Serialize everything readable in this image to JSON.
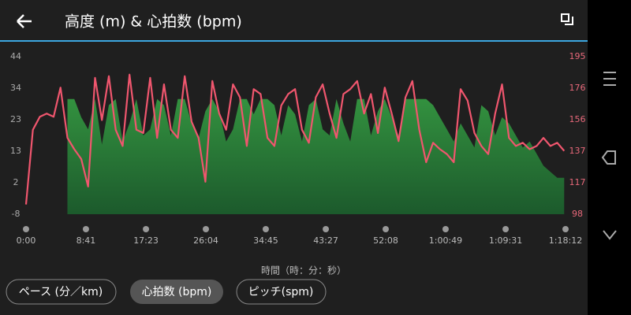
{
  "header": {
    "title": "高度 (m) & 心拍数 (bpm)"
  },
  "chart_data": {
    "type": "line",
    "x_label": "時間（時：分：秒）",
    "x": [
      0,
      60,
      120,
      180,
      240,
      300,
      360,
      420,
      480,
      540,
      600,
      660,
      720,
      780,
      840,
      900,
      960,
      1020,
      1080,
      1140,
      1200,
      1260,
      1320,
      1380,
      1440,
      1500,
      1560,
      1620,
      1680,
      1740,
      1800,
      1860,
      1920,
      1980,
      2040,
      2100,
      2160,
      2220,
      2280,
      2340,
      2400,
      2460,
      2520,
      2580,
      2640,
      2700,
      2760,
      2820,
      2880,
      2940,
      3000,
      3060,
      3120,
      3180,
      3240,
      3300,
      3360,
      3420,
      3480,
      3540,
      3600,
      3660,
      3720,
      3780,
      3840,
      3900,
      3960,
      4020,
      4080,
      4140,
      4200,
      4260,
      4320,
      4380,
      4440,
      4500,
      4560,
      4620,
      4680
    ],
    "xlim": [
      0,
      4692
    ],
    "xticks": [
      {
        "value": 0,
        "label": "0:00"
      },
      {
        "value": 521,
        "label": "8:41"
      },
      {
        "value": 1043,
        "label": "17:23"
      },
      {
        "value": 1564,
        "label": "26:04"
      },
      {
        "value": 2085,
        "label": "34:45"
      },
      {
        "value": 2607,
        "label": "43:27"
      },
      {
        "value": 3128,
        "label": "52:08"
      },
      {
        "value": 3649,
        "label": "1:00:49"
      },
      {
        "value": 4171,
        "label": "1:09:31"
      },
      {
        "value": 4692,
        "label": "1:18:12"
      }
    ],
    "ylim": [
      -8,
      44
    ],
    "yticks": [
      44,
      {
        "value": 33.6,
        "label": "34"
      },
      {
        "value": 23.2,
        "label": "23"
      },
      {
        "value": 12.8,
        "label": "13"
      },
      {
        "value": 2.4,
        "label": "2"
      },
      -8
    ],
    "y2lim": [
      98,
      195
    ],
    "y2ticks": [
      195,
      {
        "value": 175.6,
        "label": "176"
      },
      {
        "value": 156.2,
        "label": "156"
      },
      {
        "value": 136.8,
        "label": "137"
      },
      {
        "value": 117.4,
        "label": "117"
      },
      98
    ],
    "series": [
      {
        "color": "#2f8f3f",
        "fill": true,
        "values": [
          null,
          null,
          null,
          null,
          null,
          null,
          30,
          30,
          24,
          20,
          30,
          15,
          28,
          30,
          16,
          22,
          30,
          18,
          20,
          30,
          28,
          18,
          30,
          30,
          22,
          17,
          26,
          30,
          26,
          16,
          20,
          30,
          30,
          25,
          30,
          30,
          28,
          18,
          28,
          25,
          16,
          28,
          30,
          20,
          18,
          30,
          22,
          16,
          30,
          30,
          18,
          26,
          30,
          24,
          18,
          30,
          30,
          30,
          30,
          28,
          24,
          20,
          16,
          22,
          18,
          14,
          28,
          26,
          18,
          24,
          22,
          18,
          14,
          16,
          12,
          8,
          6,
          4,
          4
        ]
      },
      {
        "color": "#f0566e",
        "axis": "y2",
        "values": [
          104,
          150,
          158,
          160,
          158,
          176,
          145,
          138,
          132,
          115,
          182,
          156,
          183,
          150,
          140,
          184,
          150,
          148,
          182,
          145,
          178,
          150,
          145,
          183,
          155,
          145,
          118,
          180,
          160,
          150,
          178,
          170,
          140,
          175,
          172,
          145,
          140,
          165,
          172,
          175,
          150,
          142,
          170,
          178,
          160,
          145,
          172,
          175,
          180,
          160,
          172,
          148,
          176,
          160,
          143,
          170,
          180,
          150,
          130,
          142,
          138,
          135,
          130,
          175,
          168,
          148,
          140,
          135,
          160,
          178,
          145,
          140,
          142,
          138,
          140,
          145,
          140,
          142,
          137
        ]
      }
    ]
  },
  "buttons": [
    "ペース (分／km)",
    "心拍数 (bpm)",
    "ピッチ(spm)"
  ]
}
